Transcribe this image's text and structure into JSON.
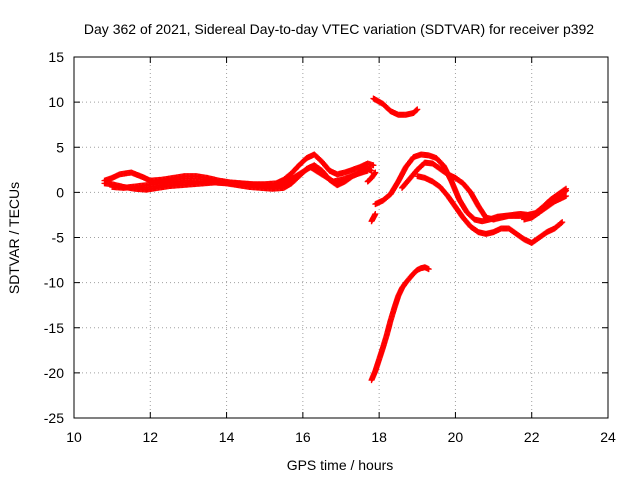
{
  "chart_data": {
    "type": "scatter",
    "title": "Day 362 of 2021, Sidereal Day-to-day VTEC variation (SDTVAR) for receiver p392",
    "xlabel": "GPS time / hours",
    "ylabel": "SDTVAR / TECUs",
    "xlim": [
      10,
      24
    ],
    "ylim": [
      -25,
      15
    ],
    "xticks": [
      10,
      12,
      14,
      16,
      18,
      20,
      22,
      24
    ],
    "yticks": [
      -25,
      -20,
      -15,
      -10,
      -5,
      0,
      5,
      10,
      15
    ],
    "grid": true,
    "legend": "none",
    "marker": "plus",
    "series": [
      {
        "color": "#ff0000",
        "tracks": [
          {
            "x": [
              10.8,
              11.0,
              11.2,
              11.5,
              11.8,
              12.0,
              12.3,
              12.6,
              12.9,
              13.2,
              13.5,
              13.8,
              14.1,
              14.4,
              14.7,
              15.0,
              15.3,
              15.5,
              15.7,
              15.9,
              16.1,
              16.3,
              16.5,
              16.7,
              16.9,
              17.1,
              17.3,
              17.5,
              17.7,
              17.85
            ],
            "y": [
              1.3,
              1.6,
              2.0,
              2.2,
              1.7,
              1.3,
              1.4,
              1.6,
              1.8,
              1.8,
              1.6,
              1.3,
              1.1,
              1.0,
              0.9,
              0.9,
              1.0,
              1.4,
              2.1,
              3.0,
              3.8,
              4.2,
              3.4,
              2.4,
              2.0,
              2.2,
              2.5,
              2.8,
              3.2,
              3.0
            ]
          },
          {
            "x": [
              10.8,
              11.0,
              11.3,
              11.6,
              11.9,
              12.2,
              12.5,
              12.8,
              13.1,
              13.4,
              13.7,
              14.0,
              14.3,
              14.6,
              14.9,
              15.2,
              15.5,
              15.7,
              15.9,
              16.1,
              16.3,
              16.5,
              16.7,
              16.9,
              17.1,
              17.3,
              17.5,
              17.7,
              17.8
            ],
            "y": [
              1.0,
              0.9,
              0.6,
              0.4,
              0.3,
              0.5,
              0.7,
              0.8,
              0.9,
              1.0,
              1.1,
              1.0,
              0.8,
              0.6,
              0.5,
              0.4,
              0.5,
              1.0,
              1.8,
              2.6,
              3.0,
              2.4,
              1.4,
              0.8,
              1.2,
              1.8,
              2.2,
              2.6,
              2.4
            ]
          },
          {
            "x": [
              11.0,
              11.3,
              11.7,
              12.1,
              12.5,
              12.9,
              13.3,
              13.7,
              14.1,
              14.5,
              14.9,
              15.3,
              15.6,
              15.9,
              16.2,
              16.5,
              16.8,
              17.1,
              17.4,
              17.7
            ],
            "y": [
              0.6,
              0.5,
              0.7,
              0.9,
              1.1,
              1.3,
              1.2,
              1.1,
              1.0,
              0.9,
              0.8,
              0.7,
              1.2,
              2.0,
              2.8,
              2.0,
              1.2,
              1.5,
              2.0,
              2.4
            ]
          },
          {
            "x": [
              17.7,
              17.8,
              17.9
            ],
            "y": [
              1.2,
              1.6,
              2.2
            ]
          },
          {
            "x": [
              17.8,
              17.85,
              17.9
            ],
            "y": [
              -3.2,
              -2.8,
              -2.4
            ]
          },
          {
            "x": [
              17.85,
              18.1,
              18.3,
              18.5,
              18.7,
              18.9,
              19.0
            ],
            "y": [
              10.4,
              9.8,
              9.0,
              8.6,
              8.6,
              8.8,
              9.2
            ]
          },
          {
            "x": [
              17.8,
              17.9,
              18.0,
              18.1,
              18.2,
              18.3,
              18.4,
              18.5,
              18.6,
              18.7,
              18.8,
              18.9,
              19.0,
              19.1,
              19.2,
              19.3
            ],
            "y": [
              -20.8,
              -19.8,
              -18.5,
              -17.2,
              -15.8,
              -14.2,
              -12.8,
              -11.5,
              -10.6,
              -10.0,
              -9.5,
              -9.0,
              -8.6,
              -8.4,
              -8.3,
              -8.5
            ]
          },
          {
            "x": [
              17.9,
              18.1,
              18.3,
              18.5,
              18.7,
              18.9,
              19.1,
              19.3,
              19.5,
              19.7,
              19.9,
              20.1,
              20.3,
              20.5,
              20.7,
              20.9,
              21.1,
              21.3,
              21.5,
              21.7,
              21.9,
              22.1,
              22.3,
              22.5,
              22.7,
              22.9
            ],
            "y": [
              -1.3,
              -0.9,
              -0.2,
              1.2,
              2.8,
              3.9,
              4.2,
              4.1,
              3.8,
              2.9,
              1.2,
              -0.8,
              -2.2,
              -3.0,
              -3.2,
              -3.0,
              -2.7,
              -2.6,
              -2.5,
              -2.4,
              -2.5,
              -2.3,
              -1.6,
              -0.8,
              -0.2,
              0.4
            ]
          },
          {
            "x": [
              18.6,
              18.8,
              19.0,
              19.2,
              19.4,
              19.6,
              19.8,
              20.0,
              20.2,
              20.4,
              20.6,
              20.8,
              21.0,
              21.2,
              21.4,
              21.6,
              21.8,
              22.0,
              22.2,
              22.4,
              22.6,
              22.8,
              22.9
            ],
            "y": [
              0.5,
              1.5,
              2.5,
              3.3,
              3.2,
              2.6,
              2.0,
              1.6,
              1.0,
              0.0,
              -1.5,
              -2.8,
              -3.0,
              -2.8,
              -2.6,
              -2.6,
              -2.6,
              -2.7,
              -2.2,
              -1.2,
              -0.6,
              -0.2,
              0.2
            ]
          },
          {
            "x": [
              19.0,
              19.2,
              19.4,
              19.6,
              19.8,
              20.0,
              20.2,
              20.4,
              20.6,
              20.8,
              21.0,
              21.2,
              21.4,
              21.6,
              21.8,
              22.0,
              22.2,
              22.4,
              22.6,
              22.8
            ],
            "y": [
              1.8,
              1.6,
              1.2,
              0.6,
              -0.4,
              -1.6,
              -2.8,
              -3.8,
              -4.4,
              -4.6,
              -4.4,
              -4.0,
              -4.0,
              -4.6,
              -5.2,
              -5.6,
              -5.0,
              -4.4,
              -4.0,
              -3.3
            ]
          },
          {
            "x": [
              21.8,
              22.0,
              22.2,
              22.4,
              22.6,
              22.8,
              22.9
            ],
            "y": [
              -3.0,
              -2.8,
              -2.2,
              -1.6,
              -1.0,
              -0.6,
              -0.4
            ]
          }
        ]
      }
    ]
  }
}
